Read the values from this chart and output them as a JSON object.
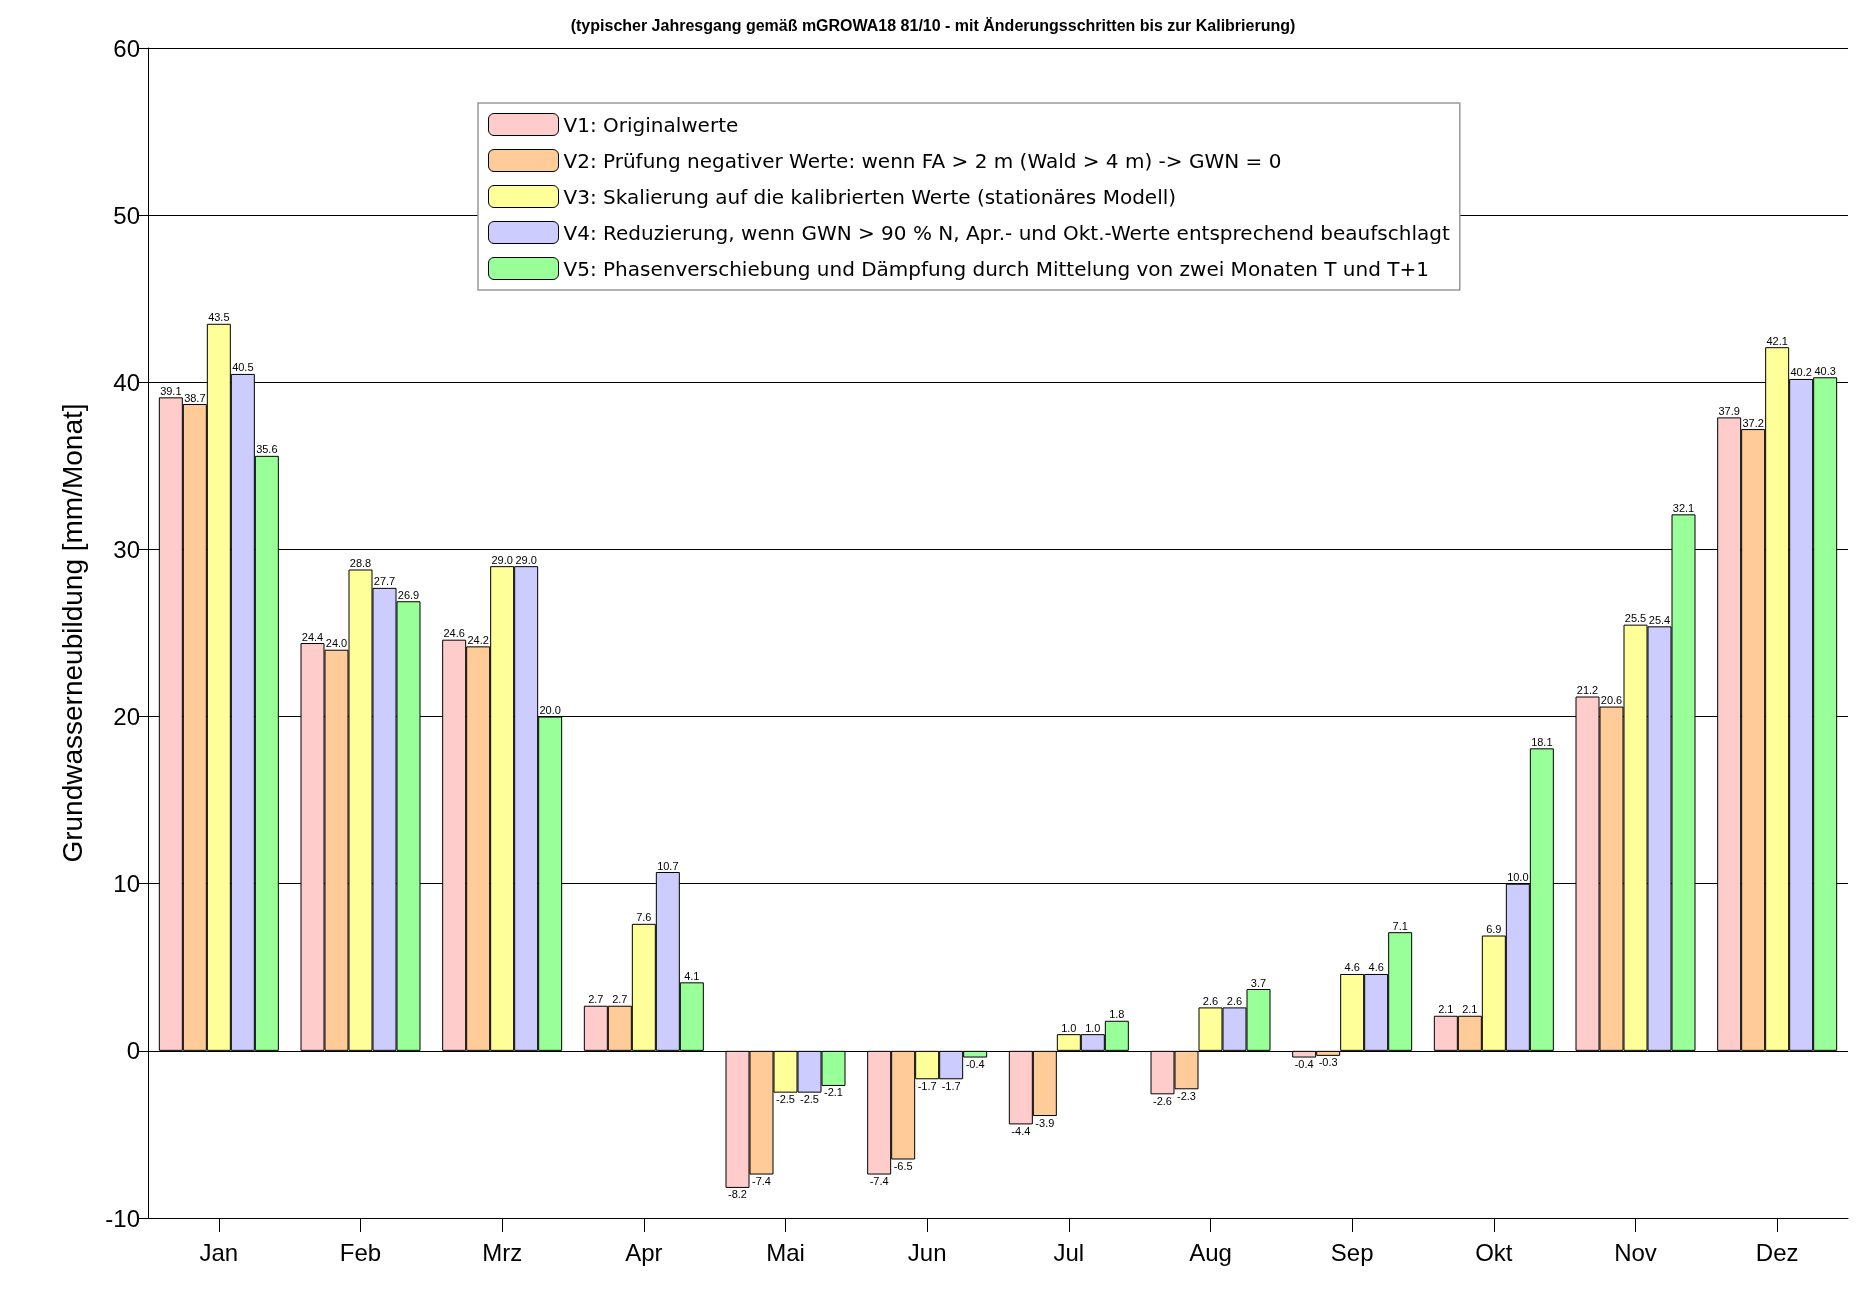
{
  "chart_data": {
    "type": "bar",
    "title": "(typischer Jahresgang gemäß mGROWA18 81/10 - mit Änderungsschritten bis zur Kalibrierung)",
    "ylabel": "Grundwasserneubildung [mm/Monat]",
    "categories": [
      "Jan",
      "Feb",
      "Mrz",
      "Apr",
      "Mai",
      "Jun",
      "Jul",
      "Aug",
      "Sep",
      "Okt",
      "Nov",
      "Dez"
    ],
    "series": [
      {
        "name": "V1: Originalwerte",
        "color": "#ffcccc",
        "values": [
          39.1,
          24.4,
          24.6,
          2.7,
          -8.2,
          -7.4,
          -4.4,
          -2.6,
          -0.4,
          2.1,
          21.2,
          37.9
        ],
        "value_labels": [
          "39.1",
          "24.4",
          "24.6",
          "2.7",
          "-8.2",
          "-7.4",
          "-4.4",
          "-2.6",
          "-0.4",
          "2.1",
          "21.2",
          "37.9"
        ]
      },
      {
        "name": "V2: Prüfung negativer Werte: wenn FA > 2 m (Wald > 4 m) -> GWN = 0",
        "color": "#ffcc99",
        "values": [
          38.7,
          24.0,
          24.2,
          2.7,
          -7.4,
          -6.5,
          -3.9,
          -2.3,
          -0.3,
          2.1,
          20.6,
          37.2
        ],
        "value_labels": [
          "38.7",
          "24.0",
          "24.2",
          "2.7",
          "-7.4",
          "-6.5",
          "-3.9",
          "-2.3",
          "-0.3",
          "2.1",
          "20.6",
          "37.2"
        ]
      },
      {
        "name": "V3: Skalierung auf die kalibrierten Werte (stationäres Modell)",
        "color": "#ffff99",
        "values": [
          43.5,
          28.8,
          29.0,
          7.6,
          -2.5,
          -1.7,
          1.0,
          2.6,
          4.6,
          6.9,
          25.5,
          42.1
        ],
        "value_labels": [
          "43.5",
          "28.8",
          "29.0",
          "7.6",
          "-2.5",
          "-1.7",
          "1.0",
          "2.6",
          "4.6",
          "6.9",
          "25.5",
          "42.1"
        ]
      },
      {
        "name": "V4: Reduzierung, wenn GWN > 90 % N, Apr.- und Okt.-Werte entsprechend beaufschlagt",
        "color": "#ccccff",
        "values": [
          40.5,
          27.7,
          29.0,
          10.7,
          -2.5,
          -1.7,
          1.0,
          2.6,
          4.6,
          10.0,
          25.4,
          40.2
        ],
        "value_labels": [
          "40.5",
          "27.7",
          "29.0",
          "10.7",
          "-2.5",
          "-1.7",
          "1.0",
          "2.6",
          "4.6",
          "10.0",
          "25.4",
          "40.2"
        ]
      },
      {
        "name": "V5: Phasenverschiebung und Dämpfung durch Mittelung von zwei Monaten T und T+1",
        "color": "#99ff99",
        "values": [
          35.6,
          26.9,
          20.0,
          4.1,
          -2.1,
          -0.4,
          1.8,
          3.7,
          7.1,
          18.1,
          32.1,
          40.3
        ],
        "value_labels": [
          "35.6",
          "26.9",
          "20.0",
          "4.1",
          "-2.1",
          "-0.4",
          "1.8",
          "3.7",
          "7.1",
          "18.1",
          "32.1",
          "40.3"
        ]
      }
    ],
    "ylim": [
      -10,
      60
    ],
    "yticks": [
      -10,
      0,
      10,
      20,
      30,
      40,
      50,
      60
    ],
    "grid": "y",
    "legend": "top"
  }
}
